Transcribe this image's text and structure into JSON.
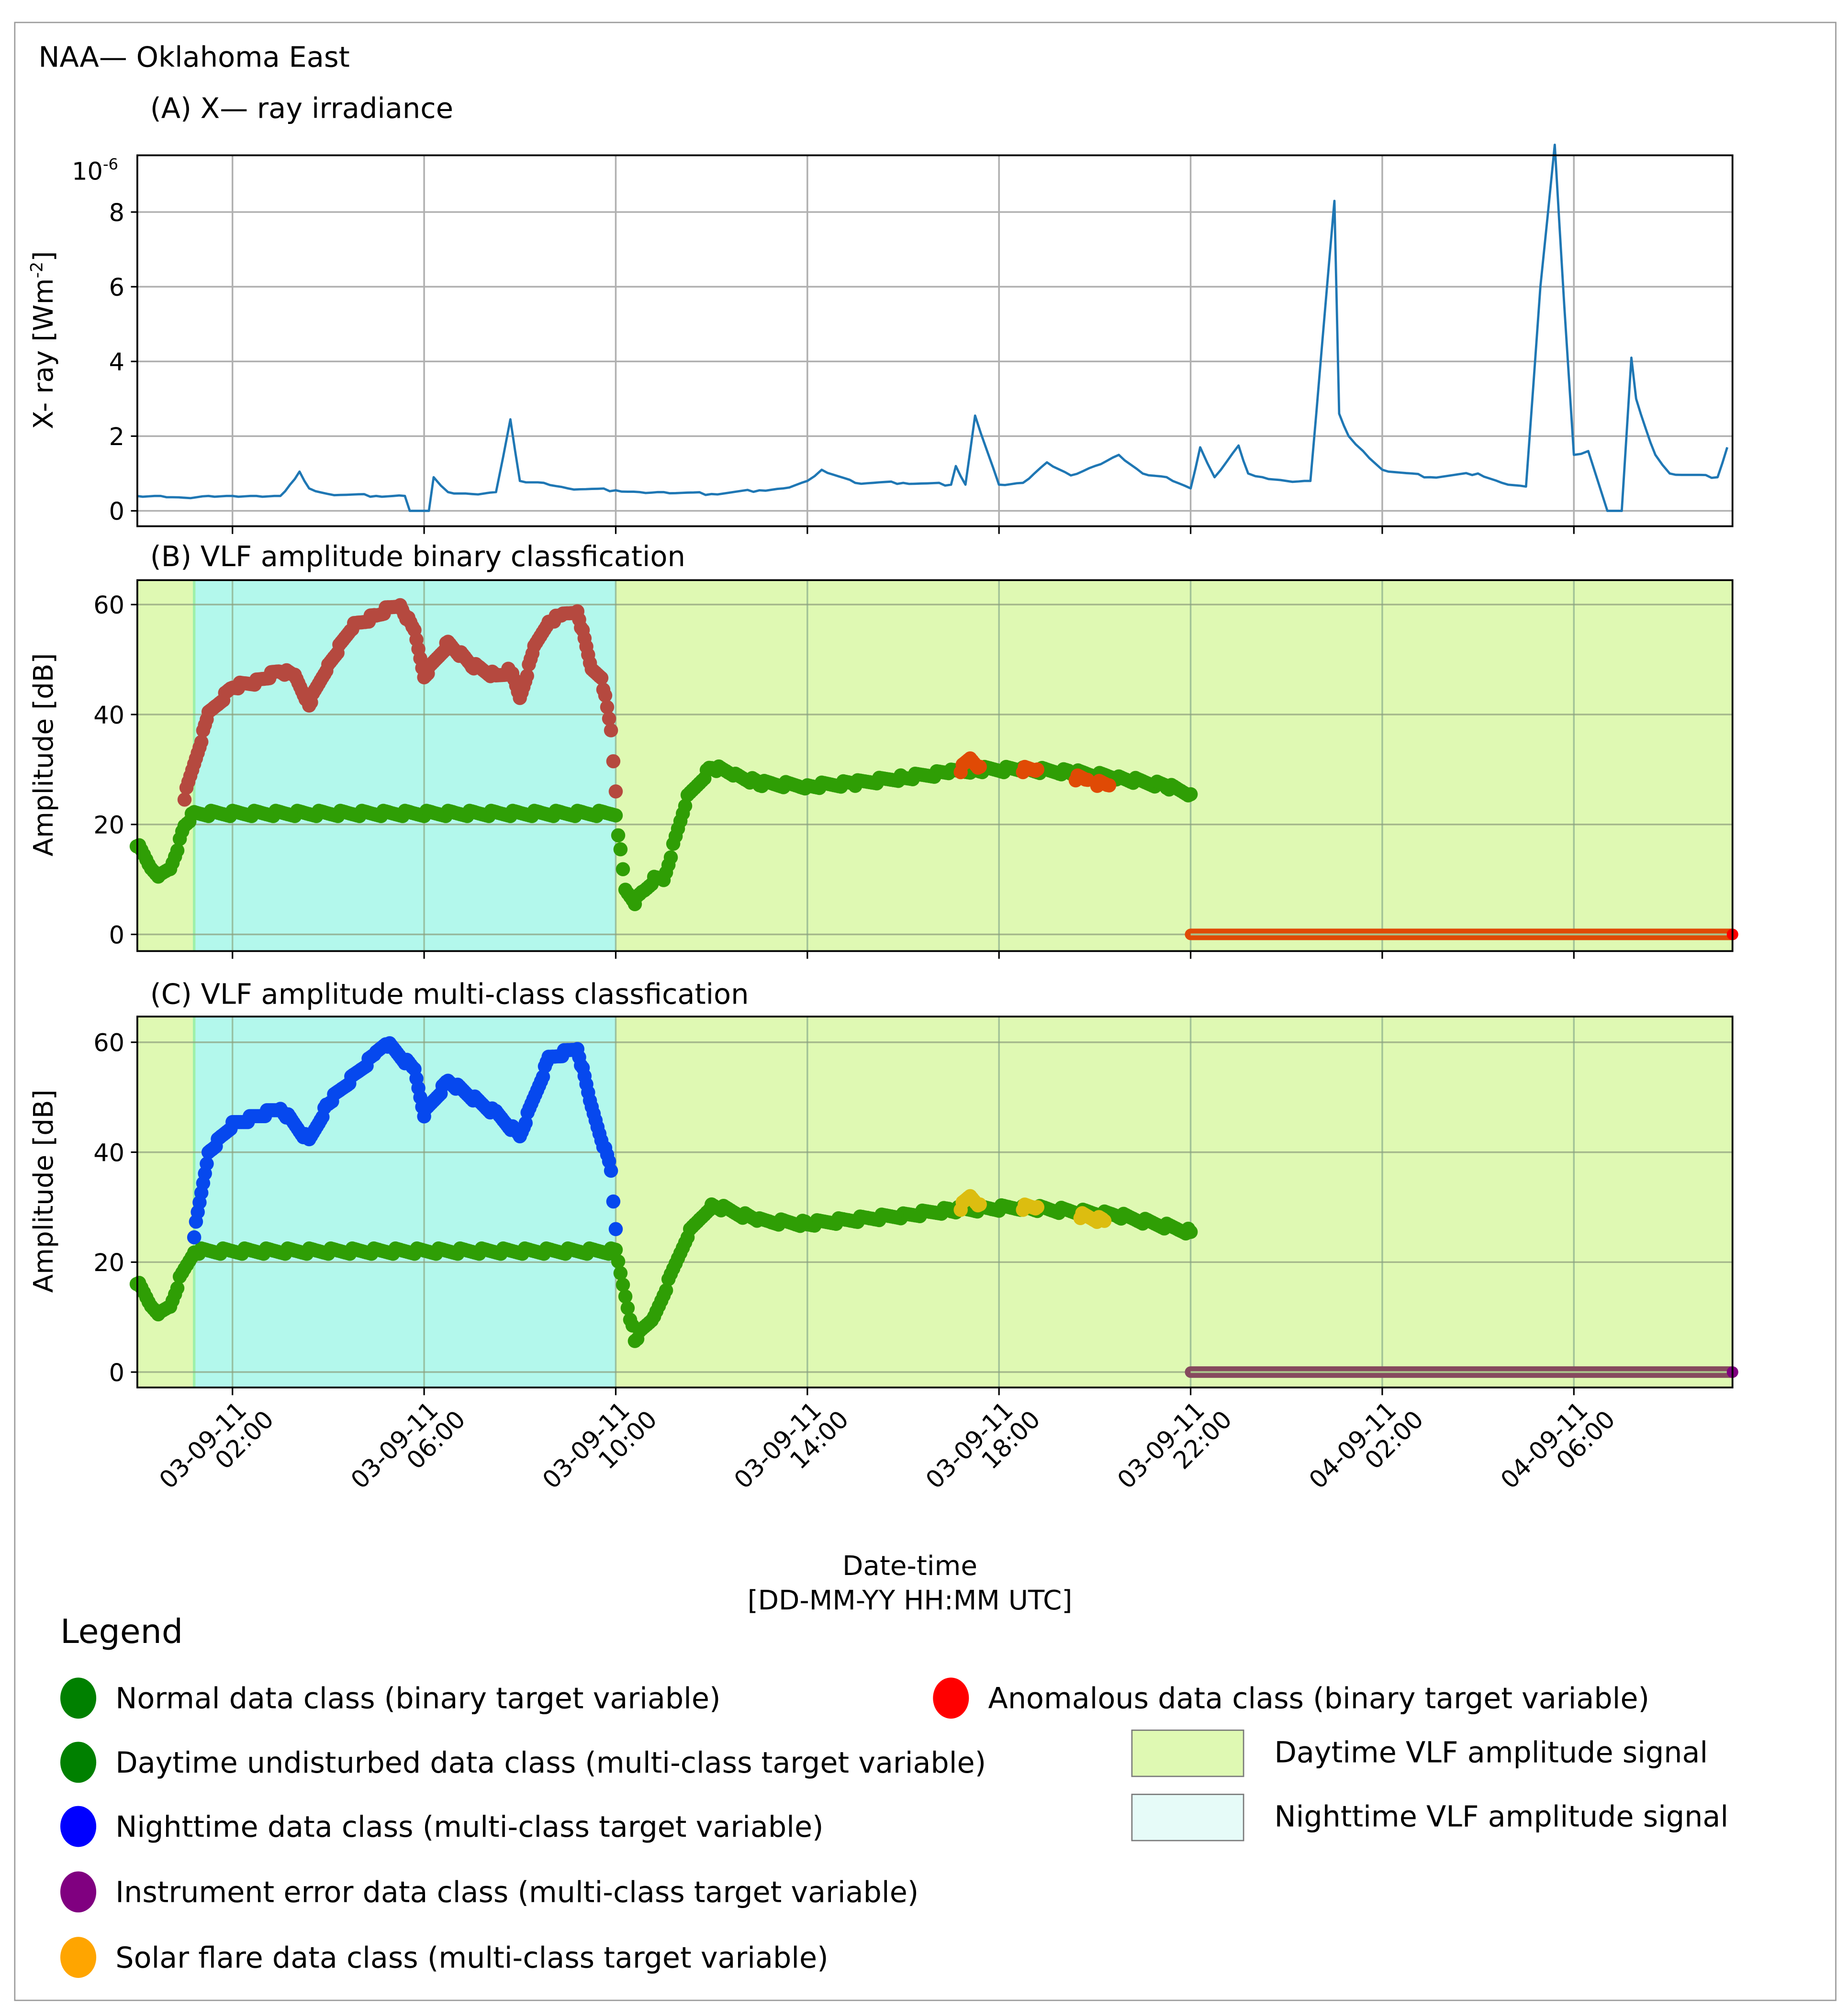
{
  "figure": {
    "station_title": "NAA— Oklahoma East",
    "panel_a_title": "(A) X— ray irradiance",
    "panel_b_title": "(B) VLF amplitude binary classfication",
    "panel_c_title": "(C) VLF amplitude multi-class classfication",
    "xlabel_line1": "Date-time",
    "xlabel_line2": "[DD-MM-YY HH:MM UTC]",
    "panel_a_ylabel": "X- ray [Wm",
    "panel_a_ylabel_sup": "-2",
    "panel_a_ylabel_end": "]",
    "panel_a_offset_base": "10",
    "panel_a_offset_exp": "-6",
    "panel_bc_ylabel": "Amplitude [dB]"
  },
  "colors": {
    "xray_line": "#1f77b4",
    "daytime_bg": "#dff9b3",
    "nighttime_bg": "#b3f8ec",
    "normal_green": "#2ca02c",
    "normal_green_dots": "#2f9e05",
    "anomalous_night": "#b5493f",
    "anomalous_red": "#e04a05",
    "night_blue": "#0648ee",
    "solar_flare_yellow": "#dcbd10",
    "instrument_error": "#864a5e",
    "legend_green": "#008000",
    "legend_red": "#ff0000",
    "legend_blue": "#0000ff",
    "legend_purple": "#800080",
    "legend_orange": "#ffa500",
    "legend_day_patch": "#dff9b3",
    "legend_night_patch": "#e6fbf8"
  },
  "axes": {
    "x_ticks": [
      {
        "date": "03-09-11",
        "time": "02:00"
      },
      {
        "date": "03-09-11",
        "time": "06:00"
      },
      {
        "date": "03-09-11",
        "time": "10:00"
      },
      {
        "date": "03-09-11",
        "time": "14:00"
      },
      {
        "date": "03-09-11",
        "time": "18:00"
      },
      {
        "date": "03-09-11",
        "time": "22:00"
      },
      {
        "date": "04-09-11",
        "time": "02:00"
      },
      {
        "date": "04-09-11",
        "time": "06:00"
      }
    ],
    "panel_a_yticks": [
      "0",
      "2",
      "4",
      "6",
      "8"
    ],
    "panel_bc_yticks": [
      "0",
      "20",
      "40",
      "60"
    ]
  },
  "legend": {
    "title": "Legend",
    "items": [
      {
        "label": "Normal data class (binary target variable)",
        "marker": "circle",
        "color": "#008000"
      },
      {
        "label": "Anomalous data class (binary target variable)",
        "marker": "circle",
        "color": "#ff0000"
      },
      {
        "label": "Daytime undisturbed data class (multi-class target variable)",
        "marker": "circle",
        "color": "#008000"
      },
      {
        "label": "Daytime VLF amplitude signal",
        "marker": "patch",
        "color": "#dff9b3"
      },
      {
        "label": "Nighttime data class (multi-class target variable)",
        "marker": "circle",
        "color": "#0000ff"
      },
      {
        "label": "Nighttime VLF amplitude signal",
        "marker": "patch",
        "color": "#e6fbf8"
      },
      {
        "label": "Instrument error data class (multi-class target variable)",
        "marker": "circle",
        "color": "#800080"
      },
      {
        "label": "Solar flare data class (multi-class target variable)",
        "marker": "circle",
        "color": "#ffa500"
      }
    ]
  },
  "chart_data": [
    {
      "type": "line",
      "title": "(A) X— ray irradiance",
      "suptitle": "NAA— Oklahoma East",
      "xlabel": "Date-time [DD-MM-YY HH:MM UTC]",
      "ylabel": "X- ray [Wm-2]",
      "y_scale_factor": "1e-6",
      "ylim": [
        -0.4,
        10
      ],
      "grid": true,
      "x_hours_from_03-09-11_00:00": [
        0,
        0.5,
        1,
        1.5,
        2,
        2.5,
        3,
        3.2,
        3.4,
        3.6,
        4,
        5,
        5.6,
        5.7,
        6.1,
        6.2,
        6.5,
        7,
        7.5,
        7.8,
        8,
        8.5,
        9,
        10,
        10.5,
        11,
        12,
        13,
        13.5,
        14,
        14.3,
        15,
        16,
        17,
        17.1,
        17.3,
        17.5,
        18,
        18.5,
        19,
        19.5,
        20,
        20.5,
        21,
        21.5,
        22,
        22.2,
        22.5,
        23,
        23.2,
        23.5,
        24,
        24.5,
        25.0,
        25.1,
        25.3,
        25.6,
        26,
        27,
        28,
        28.5,
        29,
        29.3,
        29.6,
        29.8,
        30.0,
        30.3,
        30.7,
        31.0,
        31.2,
        31.3,
        31.5,
        31.7,
        32,
        33,
        33.2
      ],
      "values": [
        0.4,
        0.4,
        0.35,
        0.4,
        0.4,
        0.4,
        0.4,
        0.7,
        1.05,
        0.6,
        0.45,
        0.4,
        0.4,
        0.0,
        0.0,
        0.9,
        0.5,
        0.45,
        0.5,
        2.45,
        0.8,
        0.75,
        0.6,
        0.55,
        0.5,
        0.5,
        0.45,
        0.55,
        0.6,
        0.8,
        1.1,
        0.75,
        0.75,
        0.7,
        1.2,
        0.7,
        2.55,
        0.7,
        0.75,
        1.3,
        0.95,
        1.2,
        1.5,
        1.0,
        0.9,
        0.6,
        1.7,
        0.9,
        1.75,
        1.0,
        0.9,
        0.8,
        0.8,
        8.3,
        2.6,
        2.0,
        1.6,
        1.1,
        0.9,
        1.0,
        0.75,
        0.65,
        6.0,
        9.8,
        5.5,
        1.5,
        1.6,
        0.0,
        0.0,
        4.1,
        3.0,
        2.2,
        1.5,
        1.0,
        0.9,
        1.7
      ]
    },
    {
      "type": "scatter",
      "title": "(B) VLF amplitude binary classfication",
      "xlabel": "Date-time [DD-MM-YY HH:MM UTC]",
      "ylabel": "Amplitude [dB]",
      "ylim": [
        -3,
        65
      ],
      "grid": true,
      "background_spans": [
        {
          "label": "Daytime VLF amplitude signal",
          "x_hours": [
            0,
            1.2
          ]
        },
        {
          "label": "Nighttime VLF amplitude signal",
          "x_hours": [
            1.2,
            10.0
          ]
        },
        {
          "label": "Daytime VLF amplitude signal",
          "x_hours": [
            10.0,
            33.3
          ]
        }
      ],
      "series": [
        {
          "name": "Normal data class (binary target variable)",
          "x_hours": [
            0,
            0.3,
            0.5,
            0.7,
            0.9,
            1.0,
            1.2,
            10.0,
            10.2,
            10.4,
            10.6,
            10.8,
            11.0,
            11.5,
            12.0,
            12.5,
            13.0,
            14.0,
            15.0,
            16.0,
            17.0,
            17.5,
            18.5,
            19.5,
            20.5,
            21.5,
            22.0
          ],
          "values": [
            16.5,
            12,
            10.5,
            12,
            17,
            20,
            22,
            22,
            8,
            6,
            8,
            10,
            10,
            25,
            30.5,
            29,
            27.5,
            27,
            27.5,
            28.5,
            29.5,
            30,
            30,
            29.5,
            28.5,
            27,
            25.5
          ]
        },
        {
          "name": "Anomalous data class (binary target variable)",
          "x_hours": [
            1.0,
            1.2,
            1.5,
            2.0,
            2.5,
            3.0,
            3.3,
            3.6,
            4.0,
            4.5,
            5.0,
            5.2,
            5.5,
            5.8,
            6.0,
            6.5,
            7.0,
            7.5,
            7.8,
            8.0,
            8.3,
            8.6,
            8.9,
            9.2,
            9.5,
            9.7,
            9.9,
            10.0,
            17.2,
            17.4,
            17.6,
            18.5,
            18.8,
            19.7,
            20.2
          ],
          "values": [
            25,
            31,
            40,
            45,
            46,
            48,
            47,
            42,
            49,
            56,
            58,
            59,
            60,
            55,
            47,
            53,
            49,
            47,
            48,
            43,
            52,
            57,
            58,
            59,
            48,
            47,
            37,
            26,
            30,
            32,
            30.5,
            30,
            30,
            28.5,
            27.5
          ]
        },
        {
          "name": "Anomalous (instrument zero)",
          "x_hours": [
            22.0,
            33.3
          ],
          "values": [
            0,
            0
          ]
        }
      ]
    },
    {
      "type": "scatter",
      "title": "(C) VLF amplitude multi-class classfication",
      "xlabel": "Date-time [DD-MM-YY HH:MM UTC]",
      "ylabel": "Amplitude [dB]",
      "ylim": [
        -3,
        65
      ],
      "grid": true,
      "series": [
        {
          "name": "Daytime undisturbed data class (multi-class target variable)",
          "x_hours": [
            0,
            0.3,
            0.5,
            0.7,
            0.9,
            1.2,
            10.0,
            10.4,
            10.8,
            11.5,
            12.0,
            13.0,
            14.0,
            16.0,
            17.0,
            18.5,
            20.5,
            22.0
          ],
          "values": [
            16.5,
            12,
            10.5,
            12,
            17,
            22,
            22,
            6,
            10,
            25,
            30.5,
            27.5,
            27,
            28.5,
            29.5,
            30,
            28.5,
            25.5
          ]
        },
        {
          "name": "Nighttime data class (multi-class target variable)",
          "x_hours": [
            1.2,
            1.5,
            2.0,
            3.0,
            3.6,
            4.0,
            5.0,
            5.2,
            5.8,
            6.0,
            6.5,
            7.5,
            8.0,
            8.6,
            9.2,
            9.5,
            9.9,
            10.0
          ],
          "values": [
            25,
            40,
            45,
            48,
            42,
            49,
            58,
            60,
            55,
            47,
            53,
            47,
            43,
            57,
            59,
            48,
            37,
            26
          ]
        },
        {
          "name": "Solar flare data class (multi-class target variable)",
          "x_hours": [
            17.2,
            17.4,
            17.6,
            18.5,
            18.8,
            19.7,
            20.2
          ],
          "values": [
            30,
            32,
            30.5,
            30,
            30,
            28.5,
            27.5
          ]
        },
        {
          "name": "Instrument error data class (multi-class target variable)",
          "x_hours": [
            22.0,
            33.3
          ],
          "values": [
            0,
            0
          ]
        }
      ]
    }
  ]
}
